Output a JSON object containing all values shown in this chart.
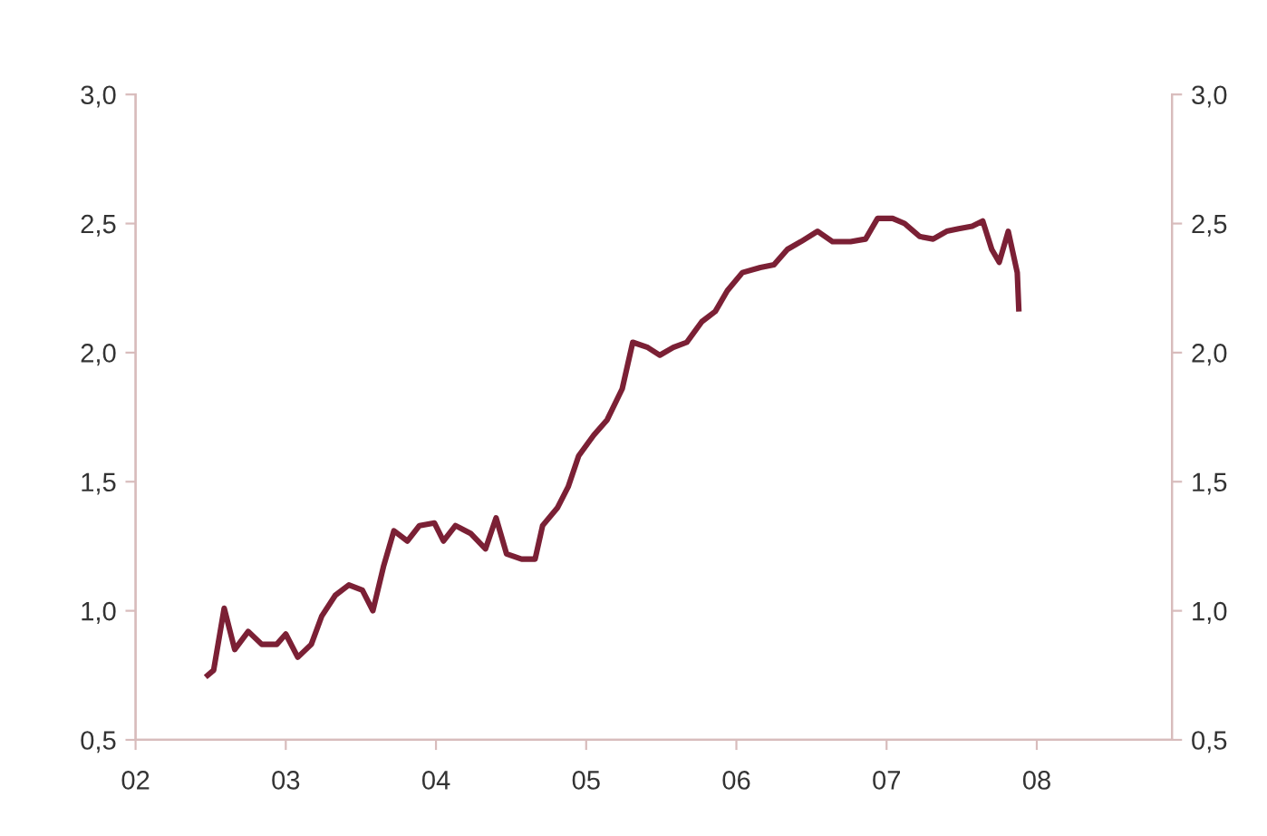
{
  "chart_data": {
    "type": "line",
    "color": "#7b2035",
    "line_style": "solid",
    "marker": "none",
    "grid": false,
    "legend": false,
    "x": [
      2002.48,
      2002.52,
      2002.59,
      2002.66,
      2002.75,
      2002.84,
      2002.94,
      2003.0,
      2003.08,
      2003.17,
      2003.24,
      2003.33,
      2003.42,
      2003.51,
      2003.58,
      2003.65,
      2003.72,
      2003.81,
      2003.89,
      2003.99,
      2004.05,
      2004.13,
      2004.23,
      2004.33,
      2004.4,
      2004.47,
      2004.57,
      2004.66,
      2004.71,
      2004.81,
      2004.88,
      2004.95,
      2005.05,
      2005.14,
      2005.24,
      2005.31,
      2005.41,
      2005.49,
      2005.58,
      2005.67,
      2005.77,
      2005.86,
      2005.94,
      2006.04,
      2006.16,
      2006.25,
      2006.34,
      2006.43,
      2006.54,
      2006.64,
      2006.76,
      2006.86,
      2006.94,
      2007.04,
      2007.12,
      2007.22,
      2007.31,
      2007.4,
      2007.48,
      2007.57,
      2007.64,
      2007.7,
      2007.75,
      2007.81,
      2007.87,
      2007.88
    ],
    "values": [
      0.75,
      0.77,
      1.01,
      0.85,
      0.92,
      0.87,
      0.87,
      0.91,
      0.82,
      0.87,
      0.98,
      1.06,
      1.1,
      1.08,
      1.0,
      1.17,
      1.31,
      1.27,
      1.33,
      1.34,
      1.27,
      1.33,
      1.3,
      1.24,
      1.36,
      1.22,
      1.2,
      1.2,
      1.33,
      1.4,
      1.48,
      1.6,
      1.68,
      1.74,
      1.86,
      2.04,
      2.02,
      1.99,
      2.02,
      2.04,
      2.12,
      2.16,
      2.24,
      2.31,
      2.33,
      2.34,
      2.4,
      2.43,
      2.47,
      2.43,
      2.43,
      2.44,
      2.52,
      2.52,
      2.5,
      2.45,
      2.44,
      2.47,
      2.48,
      2.49,
      2.51,
      2.4,
      2.35,
      2.47,
      2.31,
      2.17
    ],
    "xlim": [
      2002,
      2008.9
    ],
    "xticks": [
      {
        "value": 2002,
        "label": "02"
      },
      {
        "value": 2003,
        "label": "03"
      },
      {
        "value": 2004,
        "label": "04"
      },
      {
        "value": 2005,
        "label": "05"
      },
      {
        "value": 2006,
        "label": "06"
      },
      {
        "value": 2007,
        "label": "07"
      },
      {
        "value": 2008,
        "label": "08"
      }
    ],
    "ylim": [
      0.5,
      3.0
    ],
    "yticks": [
      {
        "value": 0.5,
        "label": "0,5"
      },
      {
        "value": 1.0,
        "label": "1,0"
      },
      {
        "value": 1.5,
        "label": "1,5"
      },
      {
        "value": 2.0,
        "label": "2,0"
      },
      {
        "value": 2.5,
        "label": "2,5"
      },
      {
        "value": 3.0,
        "label": "3,0"
      }
    ],
    "y2lim": [
      0.5,
      3.0
    ],
    "y2ticks": [
      {
        "value": 0.5,
        "label": "0,5"
      },
      {
        "value": 1.0,
        "label": "1,0"
      },
      {
        "value": 1.5,
        "label": "1,5"
      },
      {
        "value": 2.0,
        "label": "2,0"
      },
      {
        "value": 2.5,
        "label": "2,5"
      },
      {
        "value": 3.0,
        "label": "3,0"
      }
    ]
  }
}
